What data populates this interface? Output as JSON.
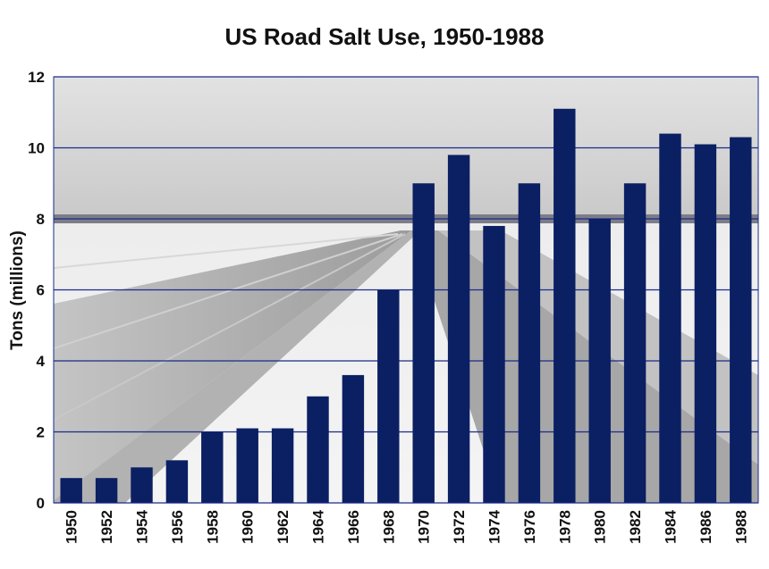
{
  "chart_data": {
    "type": "bar",
    "title": "US Road Salt Use, 1950-1988",
    "xlabel": "",
    "ylabel": "Tons (millions)",
    "ylim": [
      0,
      12
    ],
    "yticks": [
      "0",
      "2",
      "4",
      "6",
      "8",
      "10",
      "12"
    ],
    "grid": true,
    "categories": [
      "1950",
      "1952",
      "1954",
      "1956",
      "1958",
      "1960",
      "1962",
      "1964",
      "1966",
      "1968",
      "1970",
      "1972",
      "1974",
      "1976",
      "1978",
      "1980",
      "1982",
      "1984",
      "1986",
      "1988"
    ],
    "values": [
      0.7,
      0.7,
      1.0,
      1.2,
      2.0,
      2.1,
      2.1,
      3.0,
      3.6,
      6.0,
      9.0,
      9.8,
      7.8,
      9.0,
      11.1,
      8.0,
      9.0,
      10.4,
      10.1,
      10.3
    ],
    "colors": {
      "bar": "#0b1f63",
      "grid": "#1a2a8a",
      "axis": "#1a2a8a"
    },
    "background": "snowy-road-photo"
  }
}
